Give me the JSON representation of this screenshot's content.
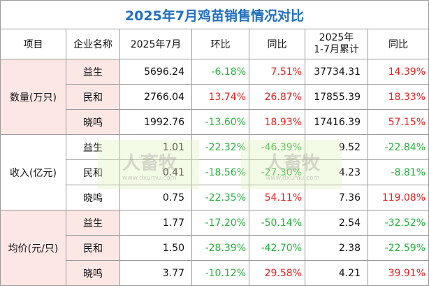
{
  "title": "2025年7月鸡苗销售情况对比",
  "header": [
    "项目",
    "企业名称",
    "2025年7月",
    "环比",
    "同比",
    [
      "2025年",
      "1-7月累计"
    ],
    "同比"
  ],
  "groups": [
    {
      "label": "数量(万只)",
      "rows": [
        [
          "益生",
          "5696.24",
          "-6.18%",
          "7.51%",
          "37734.31",
          "14.39%"
        ],
        [
          "民和",
          "2766.04",
          "13.74%",
          "26.87%",
          "17855.39",
          "18.33%"
        ],
        [
          "晓鸣",
          "1992.76",
          "-13.60%",
          "18.93%",
          "17416.39",
          "57.15%"
        ]
      ]
    },
    {
      "label": "收入(亿元)",
      "rows": [
        [
          "益生",
          "1.01",
          "-22.32%",
          "-46.39%",
          "9.52",
          "-22.84%"
        ],
        [
          "民和",
          "0.41",
          "-18.56%",
          "-27.30%",
          "4.23",
          "-8.81%"
        ],
        [
          "晓鸣",
          "0.75",
          "-22.35%",
          "54.11%",
          "7.36",
          "119.08%"
        ]
      ]
    },
    {
      "label": "均价(元/只)",
      "rows": [
        [
          "益生",
          "1.77",
          "-17.20%",
          "-50.14%",
          "2.54",
          "-32.52%"
        ],
        [
          "民和",
          "1.50",
          "-28.39%",
          "-42.70%",
          "2.38",
          "-22.59%"
        ],
        [
          "晓鸣",
          "3.77",
          "-10.12%",
          "29.58%",
          "4.21",
          "39.91%"
        ]
      ]
    }
  ],
  "watermark": {
    "brand": "人畜牧",
    "url": "www.dxumu.com"
  }
}
